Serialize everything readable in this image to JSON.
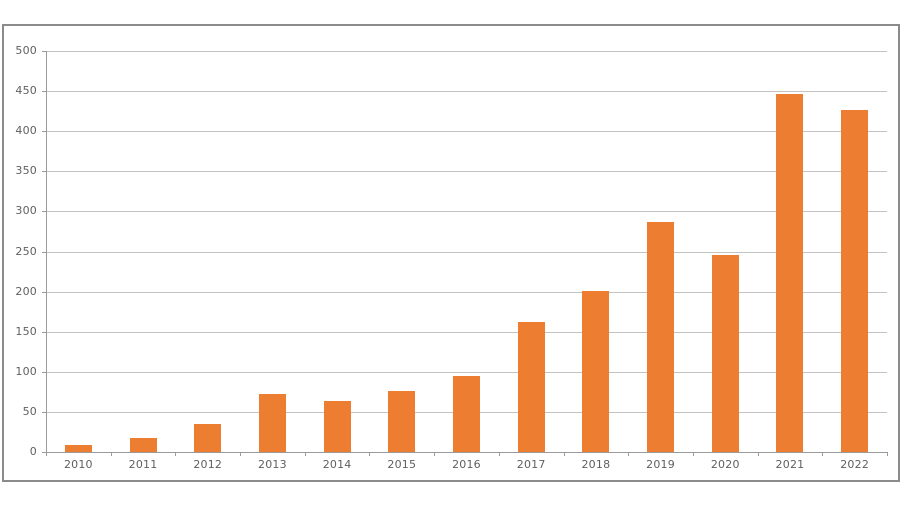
{
  "chart_data": {
    "type": "bar",
    "title": "",
    "xlabel": "",
    "ylabel": "",
    "categories": [
      "2010",
      "2011",
      "2012",
      "2013",
      "2014",
      "2015",
      "2016",
      "2017",
      "2018",
      "2019",
      "2020",
      "2021",
      "2022"
    ],
    "values": [
      9,
      17,
      35,
      72,
      63,
      76,
      95,
      162,
      201,
      287,
      246,
      447,
      427
    ],
    "ylim": [
      0,
      500
    ],
    "yticks": [
      0,
      50,
      100,
      150,
      200,
      250,
      300,
      350,
      400,
      450,
      500
    ],
    "grid": true,
    "legend_position": "none",
    "colors": {
      "bar": "#ED7D31",
      "gridline": "#c3c3c3",
      "axis": "#9b9b9b",
      "tick_label": "#5f5f5f",
      "frame_border": "#8b8b8b",
      "background": "#ffffff"
    }
  }
}
